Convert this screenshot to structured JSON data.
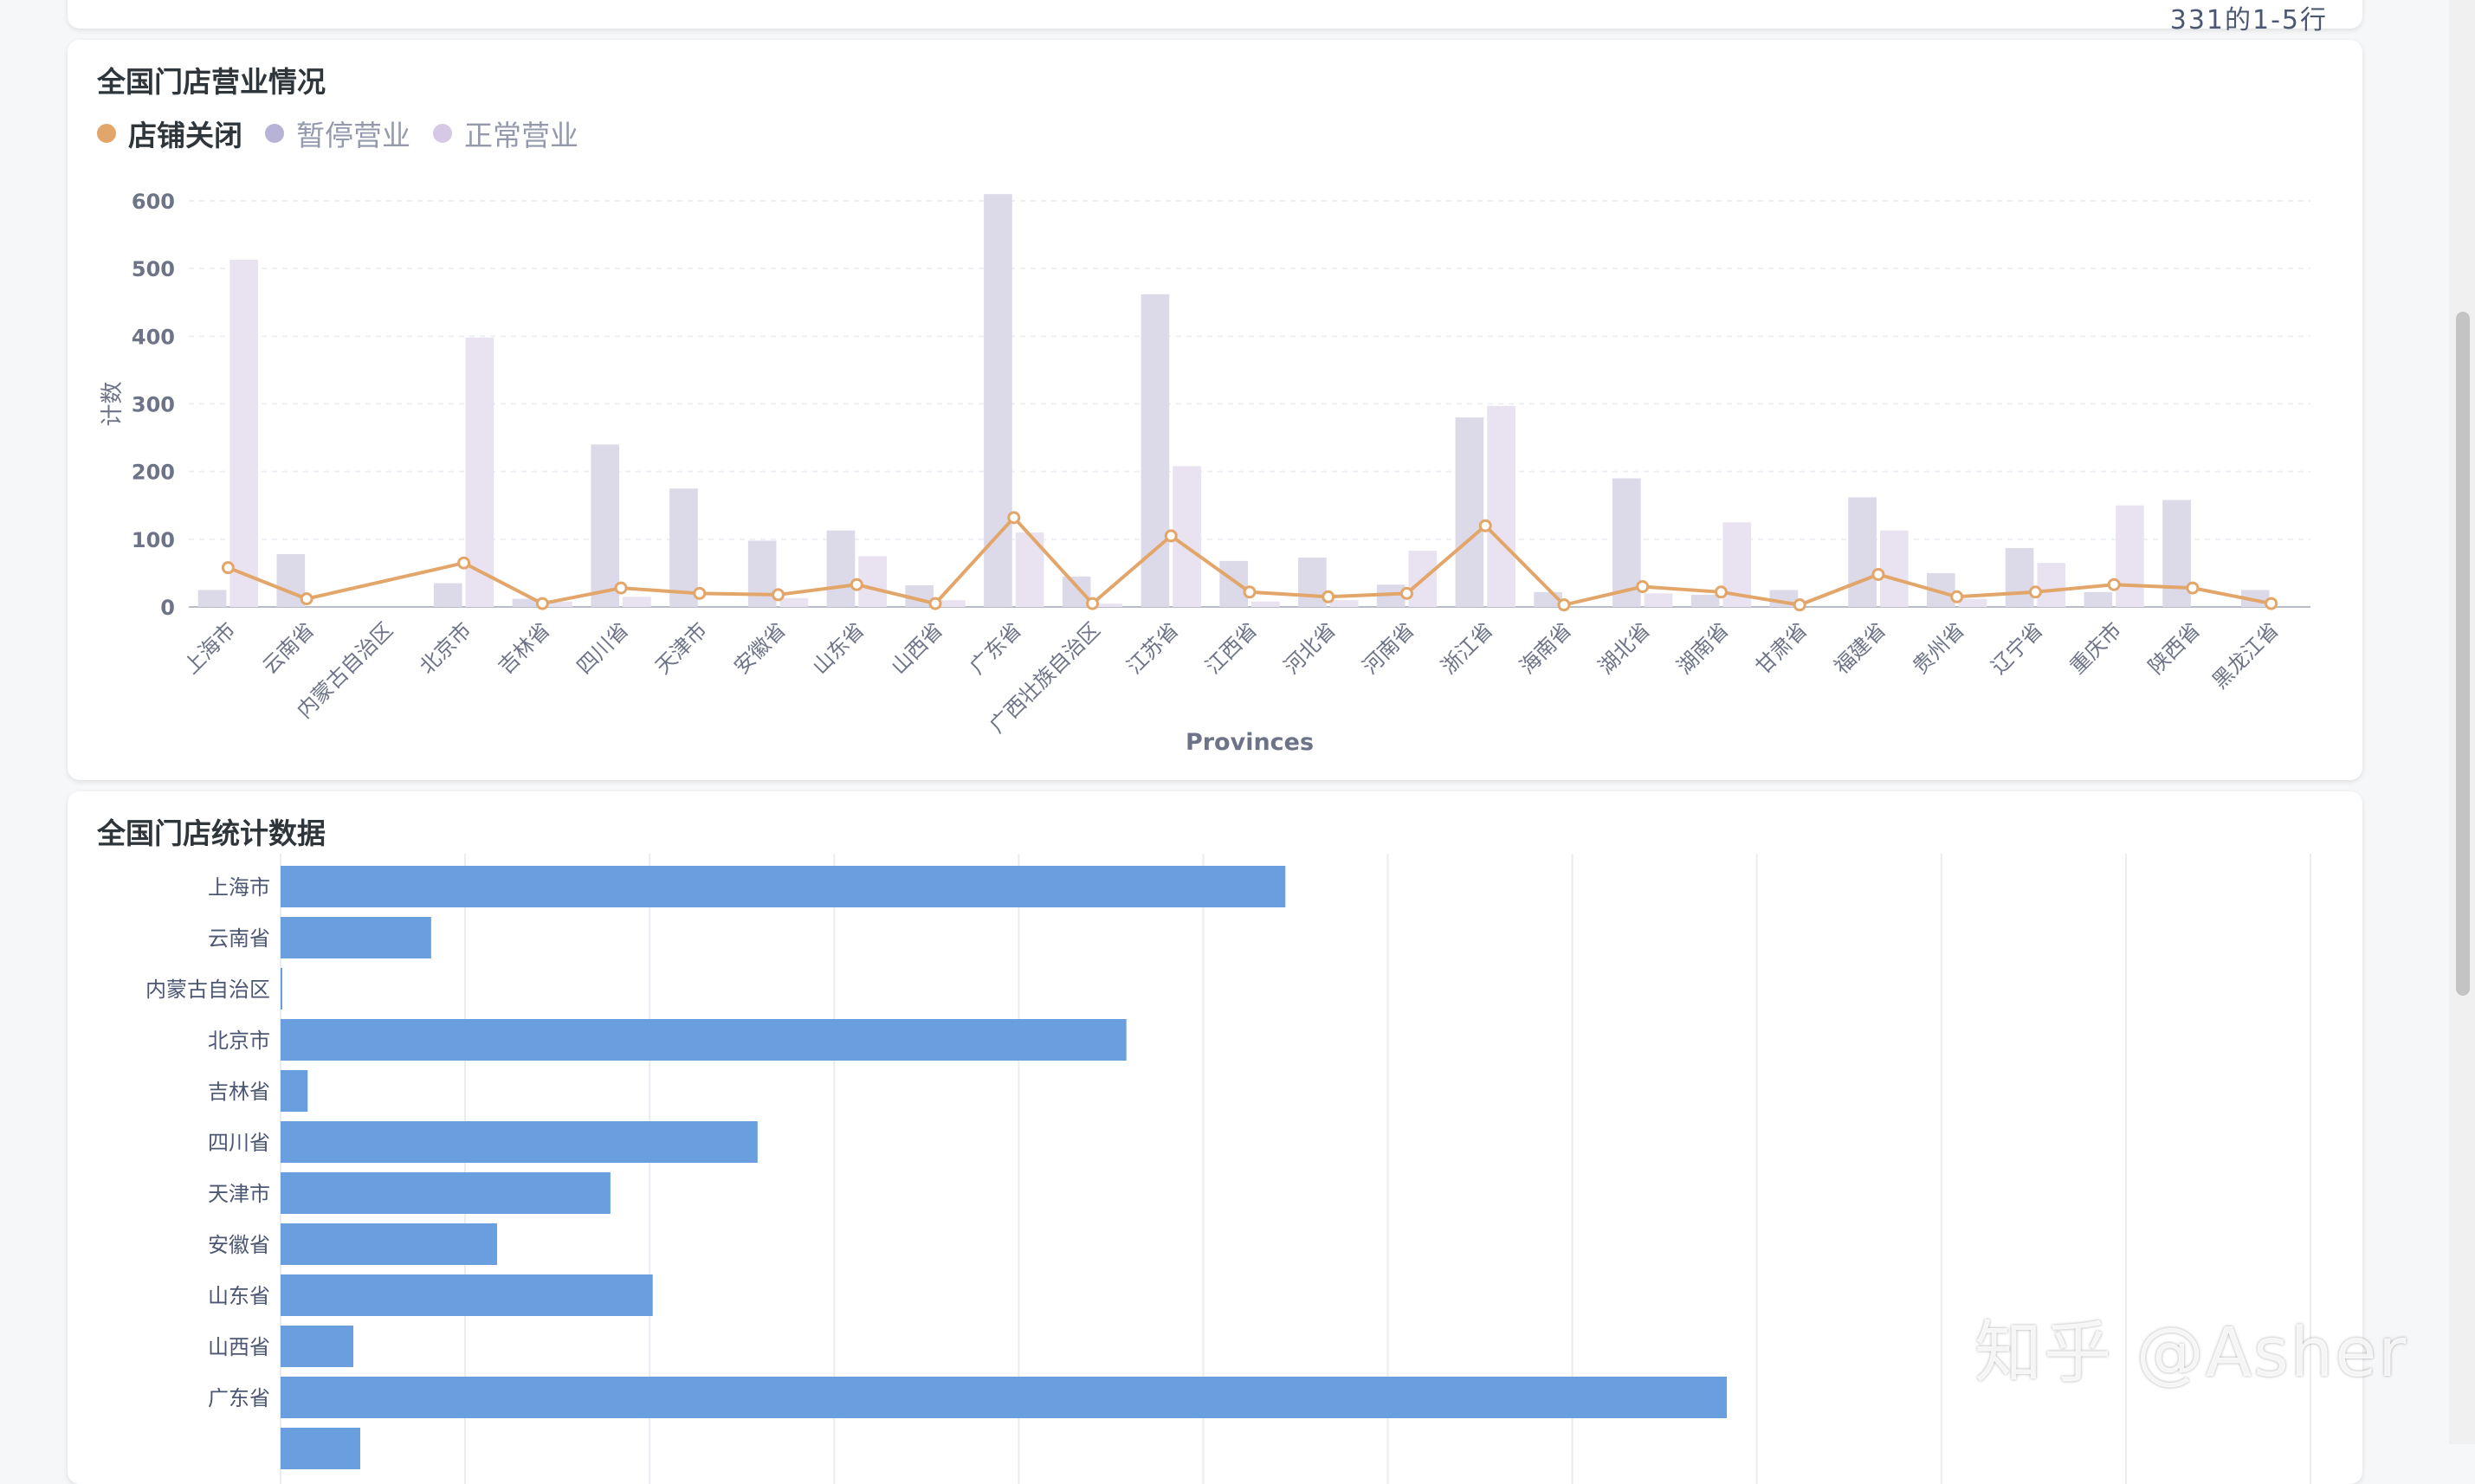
{
  "top_card": {
    "pagination_text": "331的1-5行",
    "nav_arrows": "‹ ›"
  },
  "card1": {
    "title": "全国门店营业情况",
    "legend": [
      {
        "label": "店铺关闭",
        "color": "#e3a66a"
      },
      {
        "label": "暂停营业",
        "color": "#b6b3d6"
      },
      {
        "label": "正常营业",
        "color": "#d5c9e6"
      }
    ]
  },
  "card2": {
    "title": "全国门店统计数据"
  },
  "watermark": "知乎 @Asher",
  "chart_data": [
    {
      "type": "bar",
      "title": "全国门店营业情况",
      "xlabel": "Provinces",
      "ylabel": "计数",
      "ylim": [
        0,
        600
      ],
      "yticks": [
        0,
        100,
        200,
        300,
        400,
        500,
        600
      ],
      "legend_position": "top-left",
      "grid": true,
      "categories": [
        "上海市",
        "云南省",
        "内蒙古自治区",
        "北京市",
        "吉林省",
        "四川省",
        "天津市",
        "安徽省",
        "山东省",
        "山西省",
        "广东省",
        "广西壮族自治区",
        "江苏省",
        "江西省",
        "河北省",
        "河南省",
        "浙江省",
        "海南省",
        "湖北省",
        "湖南省",
        "甘肃省",
        "福建省",
        "贵州省",
        "辽宁省",
        "重庆市",
        "陕西省",
        "黑龙江省"
      ],
      "series": [
        {
          "name": "店铺关闭",
          "kind": "line",
          "color": "#e3a66a",
          "values": [
            58,
            12,
            null,
            65,
            5,
            28,
            20,
            18,
            33,
            5,
            132,
            5,
            105,
            22,
            15,
            20,
            120,
            3,
            30,
            22,
            3,
            48,
            15,
            22,
            33,
            28,
            5
          ]
        },
        {
          "name": "暂停营业",
          "kind": "bar",
          "color": "#dcdae9",
          "values": [
            25,
            78,
            0,
            35,
            12,
            240,
            175,
            98,
            113,
            32,
            610,
            45,
            462,
            68,
            73,
            33,
            280,
            22,
            190,
            18,
            25,
            162,
            50,
            87,
            22,
            158,
            25
          ]
        },
        {
          "name": "正常营业",
          "kind": "bar",
          "color": "#e9e2f0",
          "values": [
            513,
            0,
            0,
            398,
            8,
            15,
            0,
            13,
            75,
            10,
            110,
            5,
            208,
            8,
            10,
            83,
            297,
            0,
            20,
            125,
            0,
            113,
            12,
            65,
            150,
            0,
            0
          ]
        }
      ]
    },
    {
      "type": "bar",
      "orientation": "horizontal",
      "title": "全国门店统计数据",
      "color": "#6a9fdf",
      "grid": true,
      "categories": [
        "上海市",
        "云南省",
        "内蒙古自治区",
        "北京市",
        "吉林省",
        "四川省",
        "天津市",
        "安徽省",
        "山东省",
        "山西省",
        "广东省"
      ],
      "values": [
        594,
        89,
        1,
        500,
        16,
        282,
        195,
        128,
        220,
        43,
        855
      ],
      "xlim": [
        0,
        1200
      ]
    }
  ]
}
